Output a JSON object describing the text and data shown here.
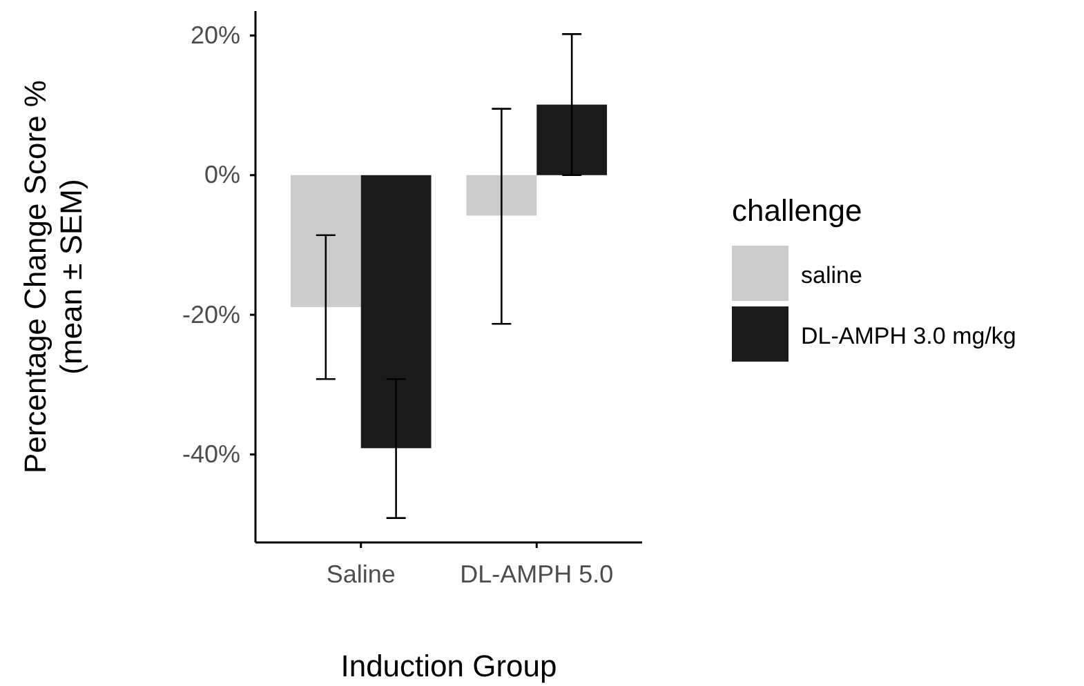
{
  "chart_data": {
    "type": "bar",
    "xlabel": "Induction Group",
    "ylabel": "Percentage Change Score %\n(mean ± SEM)",
    "legend_title": "challenge",
    "categories": [
      "Saline",
      "DL-AMPH 5.0"
    ],
    "series": [
      {
        "name": "saline",
        "color": "#cccccc",
        "values": [
          -18.9,
          -5.8
        ],
        "errors": [
          [
            -29.2,
            -8.6
          ],
          [
            -21.3,
            9.5
          ]
        ]
      },
      {
        "name": "DL-AMPH 3.0 mg/kg",
        "color": "#1a1a1a",
        "values": [
          -39.1,
          10.1
        ],
        "errors": [
          [
            -49.1,
            -29.2
          ],
          [
            0,
            20.2
          ]
        ]
      }
    ],
    "ylim": [
      -52.6,
      23.5
    ],
    "yticks": [
      {
        "value": -40,
        "label": "-40%"
      },
      {
        "value": -20,
        "label": "-20%"
      },
      {
        "value": 0,
        "label": "0%"
      },
      {
        "value": 20,
        "label": "20%"
      }
    ],
    "grid": false,
    "legend": "right"
  }
}
